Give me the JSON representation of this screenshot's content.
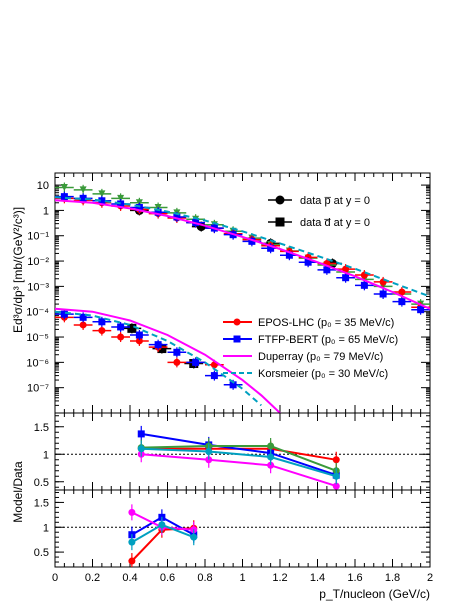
{
  "chart_data": [
    {
      "type": "scatter",
      "panel": "spectra",
      "ylabel": "Ed³σ/dp³ [mb/(GeV²/c³)]",
      "x_range": [
        0,
        2
      ],
      "y_scale": "log",
      "y_range": [
        1e-08,
        30
      ],
      "y_tick_labels": [
        "10",
        "1",
        "10⁻¹",
        "10⁻²",
        "10⁻³",
        "10⁻⁴",
        "10⁻⁵",
        "10⁻⁶",
        "10⁻⁷"
      ],
      "y_tick_values": [
        10,
        1,
        0.1,
        0.01,
        0.001,
        0.0001,
        1e-05,
        1e-06,
        1e-07
      ],
      "legend_upper": [
        {
          "label": "data p̅ at y = 0",
          "marker": "circle",
          "color": "#000000"
        },
        {
          "label": "data d̅ at y = 0",
          "marker": "square",
          "color": "#000000"
        }
      ],
      "legend_lower": [
        {
          "label": "EPOS-LHC (p₀ = 35 MeV/c)",
          "color": "#ff0000",
          "style": "circle-line"
        },
        {
          "label": "FTFP-BERT (p₀ = 65 MeV/c)",
          "color": "#0000ff",
          "style": "square-line"
        },
        {
          "label": "Duperray (p₀ = 79 MeV/c)",
          "color": "#ff00ff",
          "style": "solid"
        },
        {
          "label": "Korsmeier (p₀ = 30 MeV/c)",
          "color": "#00a0c0",
          "style": "dashed"
        }
      ],
      "series": [
        {
          "name": "data p̅",
          "color": "#000000",
          "marker": "circle",
          "x": [
            0.45,
            0.78,
            1.15,
            1.48
          ],
          "y": [
            1.0,
            0.23,
            0.05,
            0.008
          ]
        },
        {
          "name": "data d̅",
          "color": "#000000",
          "marker": "square",
          "x": [
            0.41,
            0.57,
            0.74
          ],
          "y": [
            2.2e-05,
            3.5e-06,
            9e-07
          ]
        },
        {
          "name": "green p̅",
          "color": "#3a9a3a",
          "marker": "triangle-down",
          "x": [
            0.05,
            0.15,
            0.25,
            0.35,
            0.45,
            0.55,
            0.65,
            0.75,
            0.85,
            0.95,
            1.05,
            1.15,
            1.25,
            1.35,
            1.45,
            1.55,
            1.65,
            1.75,
            1.85,
            1.95
          ],
          "y": [
            8.0,
            6.5,
            4.5,
            3.0,
            2.0,
            1.3,
            0.8,
            0.45,
            0.27,
            0.15,
            0.08,
            0.045,
            0.025,
            0.013,
            0.007,
            0.0037,
            0.0019,
            0.001,
            0.0005,
            0.0002
          ]
        },
        {
          "name": "EPOS p̅",
          "color": "#ff0000",
          "marker": "circle",
          "x": [
            0.05,
            0.15,
            0.25,
            0.35,
            0.45,
            0.55,
            0.65,
            0.75,
            0.85,
            0.95,
            1.05,
            1.15,
            1.25,
            1.35,
            1.45,
            1.55,
            1.65,
            1.75,
            1.85,
            1.95
          ],
          "y": [
            3.0,
            2.5,
            2.0,
            1.5,
            1.1,
            0.75,
            0.5,
            0.33,
            0.2,
            0.12,
            0.07,
            0.04,
            0.024,
            0.014,
            0.008,
            0.0048,
            0.0028,
            0.0015,
            0.0006,
            0.00015
          ]
        },
        {
          "name": "FTFP p̅",
          "color": "#0000ff",
          "marker": "square",
          "x": [
            0.05,
            0.15,
            0.25,
            0.35,
            0.45,
            0.55,
            0.65,
            0.75,
            0.85,
            0.95,
            1.05,
            1.15,
            1.25,
            1.35,
            1.45,
            1.55,
            1.65,
            1.75,
            1.85,
            1.95
          ],
          "y": [
            3.5,
            3.0,
            2.4,
            1.8,
            1.3,
            0.85,
            0.55,
            0.33,
            0.2,
            0.11,
            0.06,
            0.032,
            0.017,
            0.009,
            0.0045,
            0.0022,
            0.0011,
            0.0005,
            0.00025,
            0.00012
          ]
        },
        {
          "name": "EPOS d̅",
          "color": "#ff0000",
          "marker": "circle",
          "x": [
            0.05,
            0.15,
            0.25,
            0.35,
            0.45,
            0.55,
            0.65,
            0.75,
            0.85
          ],
          "y": [
            6e-05,
            3e-05,
            1.8e-05,
            1e-05,
            7e-06,
            4e-06,
            1e-06,
            1e-06,
            8e-07
          ]
        },
        {
          "name": "FTFP d̅",
          "color": "#0000ff",
          "marker": "square",
          "x": [
            0.05,
            0.15,
            0.25,
            0.35,
            0.45,
            0.55,
            0.65,
            0.75,
            0.85,
            0.95
          ],
          "y": [
            8e-05,
            6e-05,
            4e-05,
            2.5e-05,
            1.2e-05,
            5e-06,
            2.5e-06,
            1e-06,
            3e-07,
            1.3e-07
          ]
        },
        {
          "name": "Duperray p̅ curve",
          "color": "#ff00ff",
          "line": "solid",
          "x": [
            0.0,
            0.2,
            0.4,
            0.6,
            0.8,
            1.0,
            1.2,
            1.4,
            1.6,
            1.8,
            2.0
          ],
          "y": [
            2.5,
            2.0,
            1.2,
            0.6,
            0.25,
            0.09,
            0.03,
            0.009,
            0.0025,
            0.0006,
            0.00013
          ]
        },
        {
          "name": "Korsmeier p̅ curve",
          "color": "#00a0c0",
          "line": "dashed",
          "x": [
            0.0,
            0.2,
            0.4,
            0.6,
            0.8,
            1.0,
            1.2,
            1.4,
            1.6,
            1.8,
            2.0
          ],
          "y": [
            3.3,
            2.7,
            1.7,
            0.9,
            0.4,
            0.15,
            0.05,
            0.016,
            0.005,
            0.0014,
            0.0004
          ]
        },
        {
          "name": "Duperray d̅ curve",
          "color": "#ff00ff",
          "line": "solid",
          "x": [
            0.0,
            0.2,
            0.4,
            0.6,
            0.8,
            1.0,
            1.1,
            1.2
          ],
          "y": [
            0.00013,
            0.0001,
            4.5e-05,
            1.2e-05,
            2e-06,
            2e-07,
            5e-08,
            1e-08
          ]
        },
        {
          "name": "Korsmeier d̅ curve",
          "color": "#00a0c0",
          "line": "dashed",
          "x": [
            0.0,
            0.2,
            0.4,
            0.6,
            0.8,
            1.0,
            1.1
          ],
          "y": [
            0.0001,
            7e-05,
            3e-05,
            7e-06,
            1e-06,
            9e-08,
            2e-08
          ]
        }
      ]
    },
    {
      "type": "line",
      "panel": "ratio-pbar",
      "ylabel": "Model/Data",
      "x_range": [
        0,
        2
      ],
      "y_range": [
        0.35,
        1.75
      ],
      "y_tick_labels": [
        "1.5",
        "1",
        "0.5"
      ],
      "y_tick_values": [
        1.5,
        1,
        0.5
      ],
      "reference_line": 1,
      "series": [
        {
          "name": "EPOS-LHC",
          "color": "#ff0000",
          "x": [
            0.46,
            0.82,
            1.15,
            1.5
          ],
          "y": [
            1.1,
            1.1,
            1.1,
            0.9
          ]
        },
        {
          "name": "FTFP-BERT",
          "color": "#0000ff",
          "x": [
            0.46,
            0.82,
            1.15,
            1.5
          ],
          "y": [
            1.37,
            1.17,
            1.02,
            0.62
          ]
        },
        {
          "name": "green",
          "color": "#3a9a3a",
          "x": [
            0.46,
            0.82,
            1.15,
            1.5
          ],
          "y": [
            1.12,
            1.15,
            1.15,
            0.7
          ]
        },
        {
          "name": "Duperray",
          "color": "#ff00ff",
          "x": [
            0.46,
            0.82,
            1.15,
            1.5
          ],
          "y": [
            1.0,
            0.9,
            0.8,
            0.42
          ]
        },
        {
          "name": "Korsmeier",
          "color": "#00a0c0",
          "x": [
            0.46,
            0.82,
            1.15,
            1.5
          ],
          "y": [
            1.1,
            1.05,
            0.95,
            0.6
          ]
        }
      ]
    },
    {
      "type": "line",
      "panel": "ratio-dbar",
      "xlabel": "p_T/nucleon (GeV/c)",
      "x_range": [
        0,
        2
      ],
      "y_range": [
        0.2,
        1.75
      ],
      "x_tick_labels": [
        "0",
        "0.2",
        "0.4",
        "0.6",
        "0.8",
        "1",
        "1.2",
        "1.4",
        "1.6",
        "1.8",
        "2"
      ],
      "x_tick_values": [
        0,
        0.2,
        0.4,
        0.6,
        0.8,
        1.0,
        1.2,
        1.4,
        1.6,
        1.8,
        2.0
      ],
      "y_tick_labels": [
        "1.5",
        "1",
        "0.5"
      ],
      "y_tick_values": [
        1.5,
        1,
        0.5
      ],
      "reference_line": 1,
      "series": [
        {
          "name": "EPOS-LHC",
          "color": "#ff0000",
          "x": [
            0.41,
            0.57,
            0.74
          ],
          "y": [
            0.32,
            0.95,
            0.98
          ]
        },
        {
          "name": "FTFP-BERT",
          "color": "#0000ff",
          "x": [
            0.41,
            0.57,
            0.74
          ],
          "y": [
            0.85,
            1.2,
            0.85
          ]
        },
        {
          "name": "Duperray",
          "color": "#ff00ff",
          "x": [
            0.41,
            0.57,
            0.74
          ],
          "y": [
            1.3,
            1.0,
            0.95
          ]
        },
        {
          "name": "Korsmeier",
          "color": "#00a0c0",
          "x": [
            0.41,
            0.57,
            0.74
          ],
          "y": [
            0.7,
            1.05,
            0.8
          ]
        }
      ]
    }
  ]
}
